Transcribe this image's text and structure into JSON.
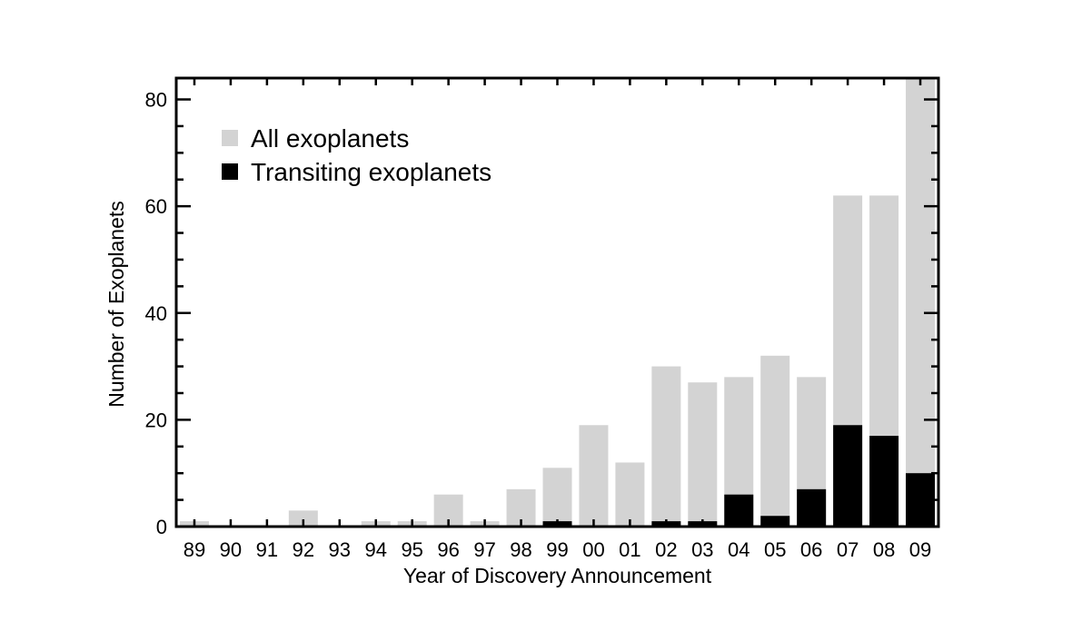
{
  "chart_data": {
    "type": "bar",
    "title": "",
    "xlabel": "Year of Discovery Announcement",
    "ylabel": "Number of Exoplanets",
    "ylim": [
      0,
      84
    ],
    "yticks": [
      0,
      20,
      40,
      60,
      80
    ],
    "legend_position": "top-left",
    "grid": false,
    "categories": [
      "89",
      "90",
      "91",
      "92",
      "93",
      "94",
      "95",
      "96",
      "97",
      "98",
      "99",
      "00",
      "01",
      "02",
      "03",
      "04",
      "05",
      "06",
      "07",
      "08",
      "09"
    ],
    "series": [
      {
        "name": "All exoplanets",
        "color": "#d3d3d3",
        "values": [
          1,
          0,
          0,
          3,
          0,
          1,
          1,
          6,
          1,
          7,
          11,
          19,
          12,
          30,
          27,
          28,
          32,
          28,
          62,
          62,
          84
        ]
      },
      {
        "name": "Transiting exoplanets",
        "color": "#000000",
        "values": [
          0,
          0,
          0,
          0,
          0,
          0,
          0,
          0,
          0,
          0,
          1,
          0,
          0,
          1,
          1,
          6,
          2,
          7,
          19,
          17,
          10
        ]
      }
    ]
  }
}
